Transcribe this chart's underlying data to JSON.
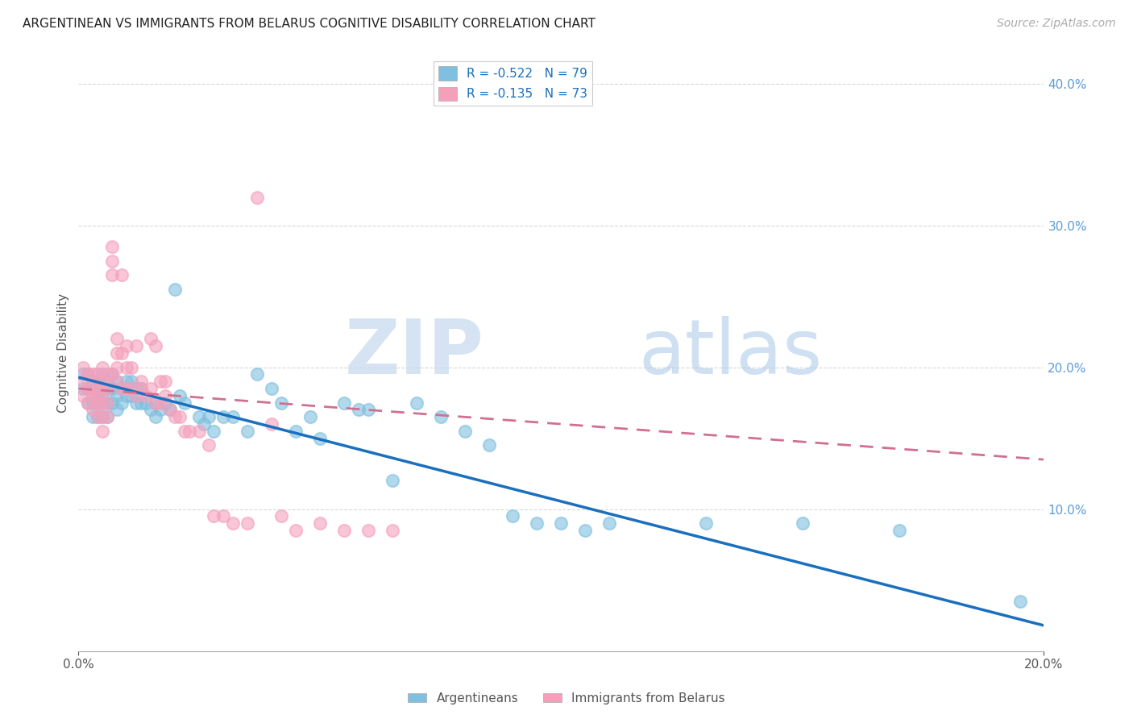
{
  "title": "ARGENTINEAN VS IMMIGRANTS FROM BELARUS COGNITIVE DISABILITY CORRELATION CHART",
  "source": "Source: ZipAtlas.com",
  "ylabel": "Cognitive Disability",
  "watermark_zip": "ZIP",
  "watermark_atlas": "atlas",
  "legend_label_1": "Argentineans",
  "legend_label_2": "Immigrants from Belarus",
  "r1": -0.522,
  "n1": 79,
  "r2": -0.135,
  "n2": 73,
  "color1": "#7fbfdf",
  "color2": "#f4a0bb",
  "trend1_color": "#1a6fbe",
  "trend2_color": "#d07090",
  "xmin": 0.0,
  "xmax": 0.2,
  "ymin": 0.0,
  "ymax": 0.42,
  "background": "#ffffff",
  "grid_color": "#d8d8d8",
  "scatter1_x": [
    0.001,
    0.001,
    0.002,
    0.002,
    0.002,
    0.003,
    0.003,
    0.003,
    0.003,
    0.004,
    0.004,
    0.004,
    0.004,
    0.004,
    0.005,
    0.005,
    0.005,
    0.005,
    0.005,
    0.006,
    0.006,
    0.006,
    0.006,
    0.007,
    0.007,
    0.007,
    0.008,
    0.008,
    0.008,
    0.009,
    0.009,
    0.01,
    0.01,
    0.011,
    0.011,
    0.012,
    0.012,
    0.013,
    0.013,
    0.014,
    0.015,
    0.016,
    0.016,
    0.017,
    0.018,
    0.019,
    0.02,
    0.021,
    0.022,
    0.025,
    0.026,
    0.027,
    0.028,
    0.03,
    0.032,
    0.035,
    0.037,
    0.04,
    0.042,
    0.045,
    0.048,
    0.05,
    0.055,
    0.058,
    0.06,
    0.065,
    0.07,
    0.075,
    0.08,
    0.085,
    0.09,
    0.095,
    0.1,
    0.105,
    0.11,
    0.13,
    0.15,
    0.17,
    0.195
  ],
  "scatter1_y": [
    0.195,
    0.185,
    0.195,
    0.185,
    0.175,
    0.19,
    0.185,
    0.175,
    0.165,
    0.19,
    0.185,
    0.18,
    0.175,
    0.165,
    0.195,
    0.185,
    0.18,
    0.175,
    0.165,
    0.19,
    0.185,
    0.175,
    0.165,
    0.195,
    0.185,
    0.175,
    0.19,
    0.18,
    0.17,
    0.185,
    0.175,
    0.19,
    0.18,
    0.19,
    0.18,
    0.185,
    0.175,
    0.185,
    0.175,
    0.175,
    0.17,
    0.175,
    0.165,
    0.17,
    0.175,
    0.17,
    0.255,
    0.18,
    0.175,
    0.165,
    0.16,
    0.165,
    0.155,
    0.165,
    0.165,
    0.155,
    0.195,
    0.185,
    0.175,
    0.155,
    0.165,
    0.15,
    0.175,
    0.17,
    0.17,
    0.12,
    0.175,
    0.165,
    0.155,
    0.145,
    0.095,
    0.09,
    0.09,
    0.085,
    0.09,
    0.09,
    0.09,
    0.085,
    0.035
  ],
  "scatter2_x": [
    0.001,
    0.001,
    0.001,
    0.002,
    0.002,
    0.002,
    0.003,
    0.003,
    0.003,
    0.003,
    0.004,
    0.004,
    0.004,
    0.004,
    0.004,
    0.005,
    0.005,
    0.005,
    0.005,
    0.005,
    0.005,
    0.006,
    0.006,
    0.006,
    0.006,
    0.007,
    0.007,
    0.007,
    0.007,
    0.008,
    0.008,
    0.008,
    0.008,
    0.009,
    0.009,
    0.009,
    0.01,
    0.01,
    0.01,
    0.011,
    0.011,
    0.012,
    0.012,
    0.013,
    0.013,
    0.014,
    0.015,
    0.015,
    0.016,
    0.016,
    0.017,
    0.017,
    0.018,
    0.018,
    0.019,
    0.02,
    0.021,
    0.022,
    0.023,
    0.025,
    0.027,
    0.028,
    0.03,
    0.032,
    0.035,
    0.037,
    0.04,
    0.042,
    0.045,
    0.05,
    0.055,
    0.06,
    0.065
  ],
  "scatter2_y": [
    0.2,
    0.19,
    0.18,
    0.195,
    0.185,
    0.175,
    0.195,
    0.185,
    0.18,
    0.17,
    0.195,
    0.185,
    0.18,
    0.175,
    0.165,
    0.2,
    0.19,
    0.185,
    0.175,
    0.165,
    0.155,
    0.195,
    0.185,
    0.175,
    0.165,
    0.275,
    0.285,
    0.265,
    0.195,
    0.22,
    0.21,
    0.2,
    0.19,
    0.265,
    0.21,
    0.185,
    0.215,
    0.2,
    0.185,
    0.2,
    0.185,
    0.215,
    0.18,
    0.19,
    0.185,
    0.18,
    0.22,
    0.185,
    0.215,
    0.175,
    0.19,
    0.175,
    0.19,
    0.18,
    0.17,
    0.165,
    0.165,
    0.155,
    0.155,
    0.155,
    0.145,
    0.095,
    0.095,
    0.09,
    0.09,
    0.32,
    0.16,
    0.095,
    0.085,
    0.09,
    0.085,
    0.085,
    0.085
  ],
  "trend1_x0": 0.0,
  "trend1_y0": 0.193,
  "trend1_x1": 0.2,
  "trend1_y1": 0.018,
  "trend2_x0": 0.0,
  "trend2_y0": 0.185,
  "trend2_x1": 0.2,
  "trend2_y1": 0.135
}
